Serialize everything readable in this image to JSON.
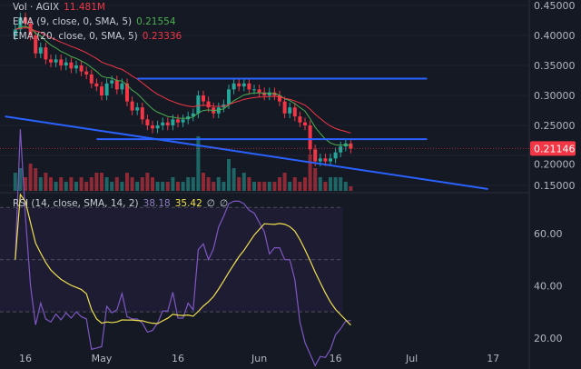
{
  "legend": {
    "vol_label": "Vol · AGIX",
    "vol_value": "11.481M",
    "ema1_label": "EMA (9, close, 0, SMA, 5)",
    "ema1_value": "0.21554",
    "ema2_label": "EMA (20, close, 0, SMA, 5)",
    "ema2_value": "0.23336",
    "rsi_label": "RSI (14, close, SMA, 14, 2)",
    "rsi_value": "38.18",
    "rsi_ma_value": "35.42",
    "extra1": "∅",
    "extra2": "∅"
  },
  "colors": {
    "up": "#26a69a",
    "down": "#f23645",
    "ema1": "#4caf50",
    "ema2": "#f23645",
    "trend": "#2962ff",
    "rsi": "#7e57c2",
    "rsi_ma": "#f0e050"
  },
  "chart_data": [
    {
      "type": "candlestick",
      "title": "AGIX",
      "current_price": "0.21146",
      "price_ticks": [
        "0.45000",
        "0.40000",
        "0.35000",
        "0.30000",
        "0.25000",
        "0.20000",
        "0.15000"
      ],
      "price_tick_values": [
        0.45,
        0.4,
        0.35,
        0.3,
        0.25,
        0.2,
        0.15
      ],
      "x_ticks": [
        "16",
        "May",
        "16",
        "Jun",
        "16",
        "Jul",
        "17"
      ],
      "x_tick_days": [
        2,
        17,
        32,
        48,
        63,
        78,
        94
      ],
      "start_date": "Apr 14",
      "closes": [
        0.41,
        0.43,
        0.42,
        0.4,
        0.37,
        0.38,
        0.36,
        0.355,
        0.36,
        0.35,
        0.355,
        0.345,
        0.35,
        0.34,
        0.335,
        0.32,
        0.315,
        0.3,
        0.32,
        0.325,
        0.31,
        0.32,
        0.29,
        0.275,
        0.28,
        0.26,
        0.25,
        0.245,
        0.25,
        0.255,
        0.25,
        0.26,
        0.255,
        0.26,
        0.265,
        0.27,
        0.3,
        0.29,
        0.28,
        0.27,
        0.28,
        0.285,
        0.31,
        0.32,
        0.315,
        0.32,
        0.31,
        0.31,
        0.305,
        0.3,
        0.305,
        0.3,
        0.29,
        0.27,
        0.28,
        0.265,
        0.255,
        0.25,
        0.21,
        0.19,
        0.195,
        0.19,
        0.195,
        0.205,
        0.215,
        0.22,
        0.2115
      ],
      "volumes": [
        4,
        5,
        3,
        6,
        5,
        3,
        4,
        3,
        2,
        3,
        2,
        3,
        2,
        3,
        2,
        3,
        4,
        4,
        3,
        2,
        3,
        2,
        4,
        3,
        2,
        3,
        4,
        3,
        2,
        2,
        2,
        3,
        2,
        2,
        3,
        3,
        12,
        4,
        3,
        2,
        3,
        2,
        7,
        5,
        3,
        4,
        3,
        2,
        2,
        2,
        2,
        2,
        3,
        4,
        2,
        3,
        2,
        3,
        8,
        5,
        3,
        2,
        3,
        3,
        3,
        2,
        1
      ],
      "trendlines": [
        {
          "from_day": 24,
          "to_day": 81,
          "p1": 0.328,
          "p2": 0.328
        },
        {
          "from_day": 16,
          "to_day": 81,
          "p1": 0.227,
          "p2": 0.227
        },
        {
          "from_day": -2,
          "to_day": 93,
          "p1": 0.265,
          "p2": 0.144
        }
      ]
    },
    {
      "type": "line",
      "title": "RSI",
      "ticks": [
        "60.00",
        "40.00",
        "20.00"
      ],
      "tick_values": [
        60,
        40,
        20
      ],
      "band": [
        70,
        30
      ]
    }
  ]
}
